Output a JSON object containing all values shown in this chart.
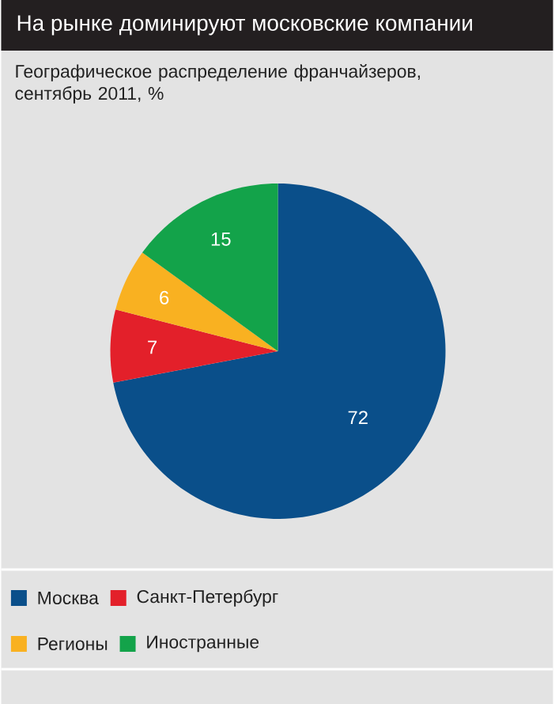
{
  "chart_data": {
    "type": "pie",
    "title": "На рынке доминируют московские компании",
    "subtitle": "Географическое распределение франчайзеров, сентябрь 2011, %",
    "categories": [
      "Москва",
      "Санкт-Петербург",
      "Регионы",
      "Иностранные"
    ],
    "values": [
      72,
      7,
      6,
      15
    ],
    "colors": [
      "#0a4f8a",
      "#e3202a",
      "#f9b121",
      "#13a34a"
    ],
    "data_labels": true,
    "legend": "bottom"
  }
}
